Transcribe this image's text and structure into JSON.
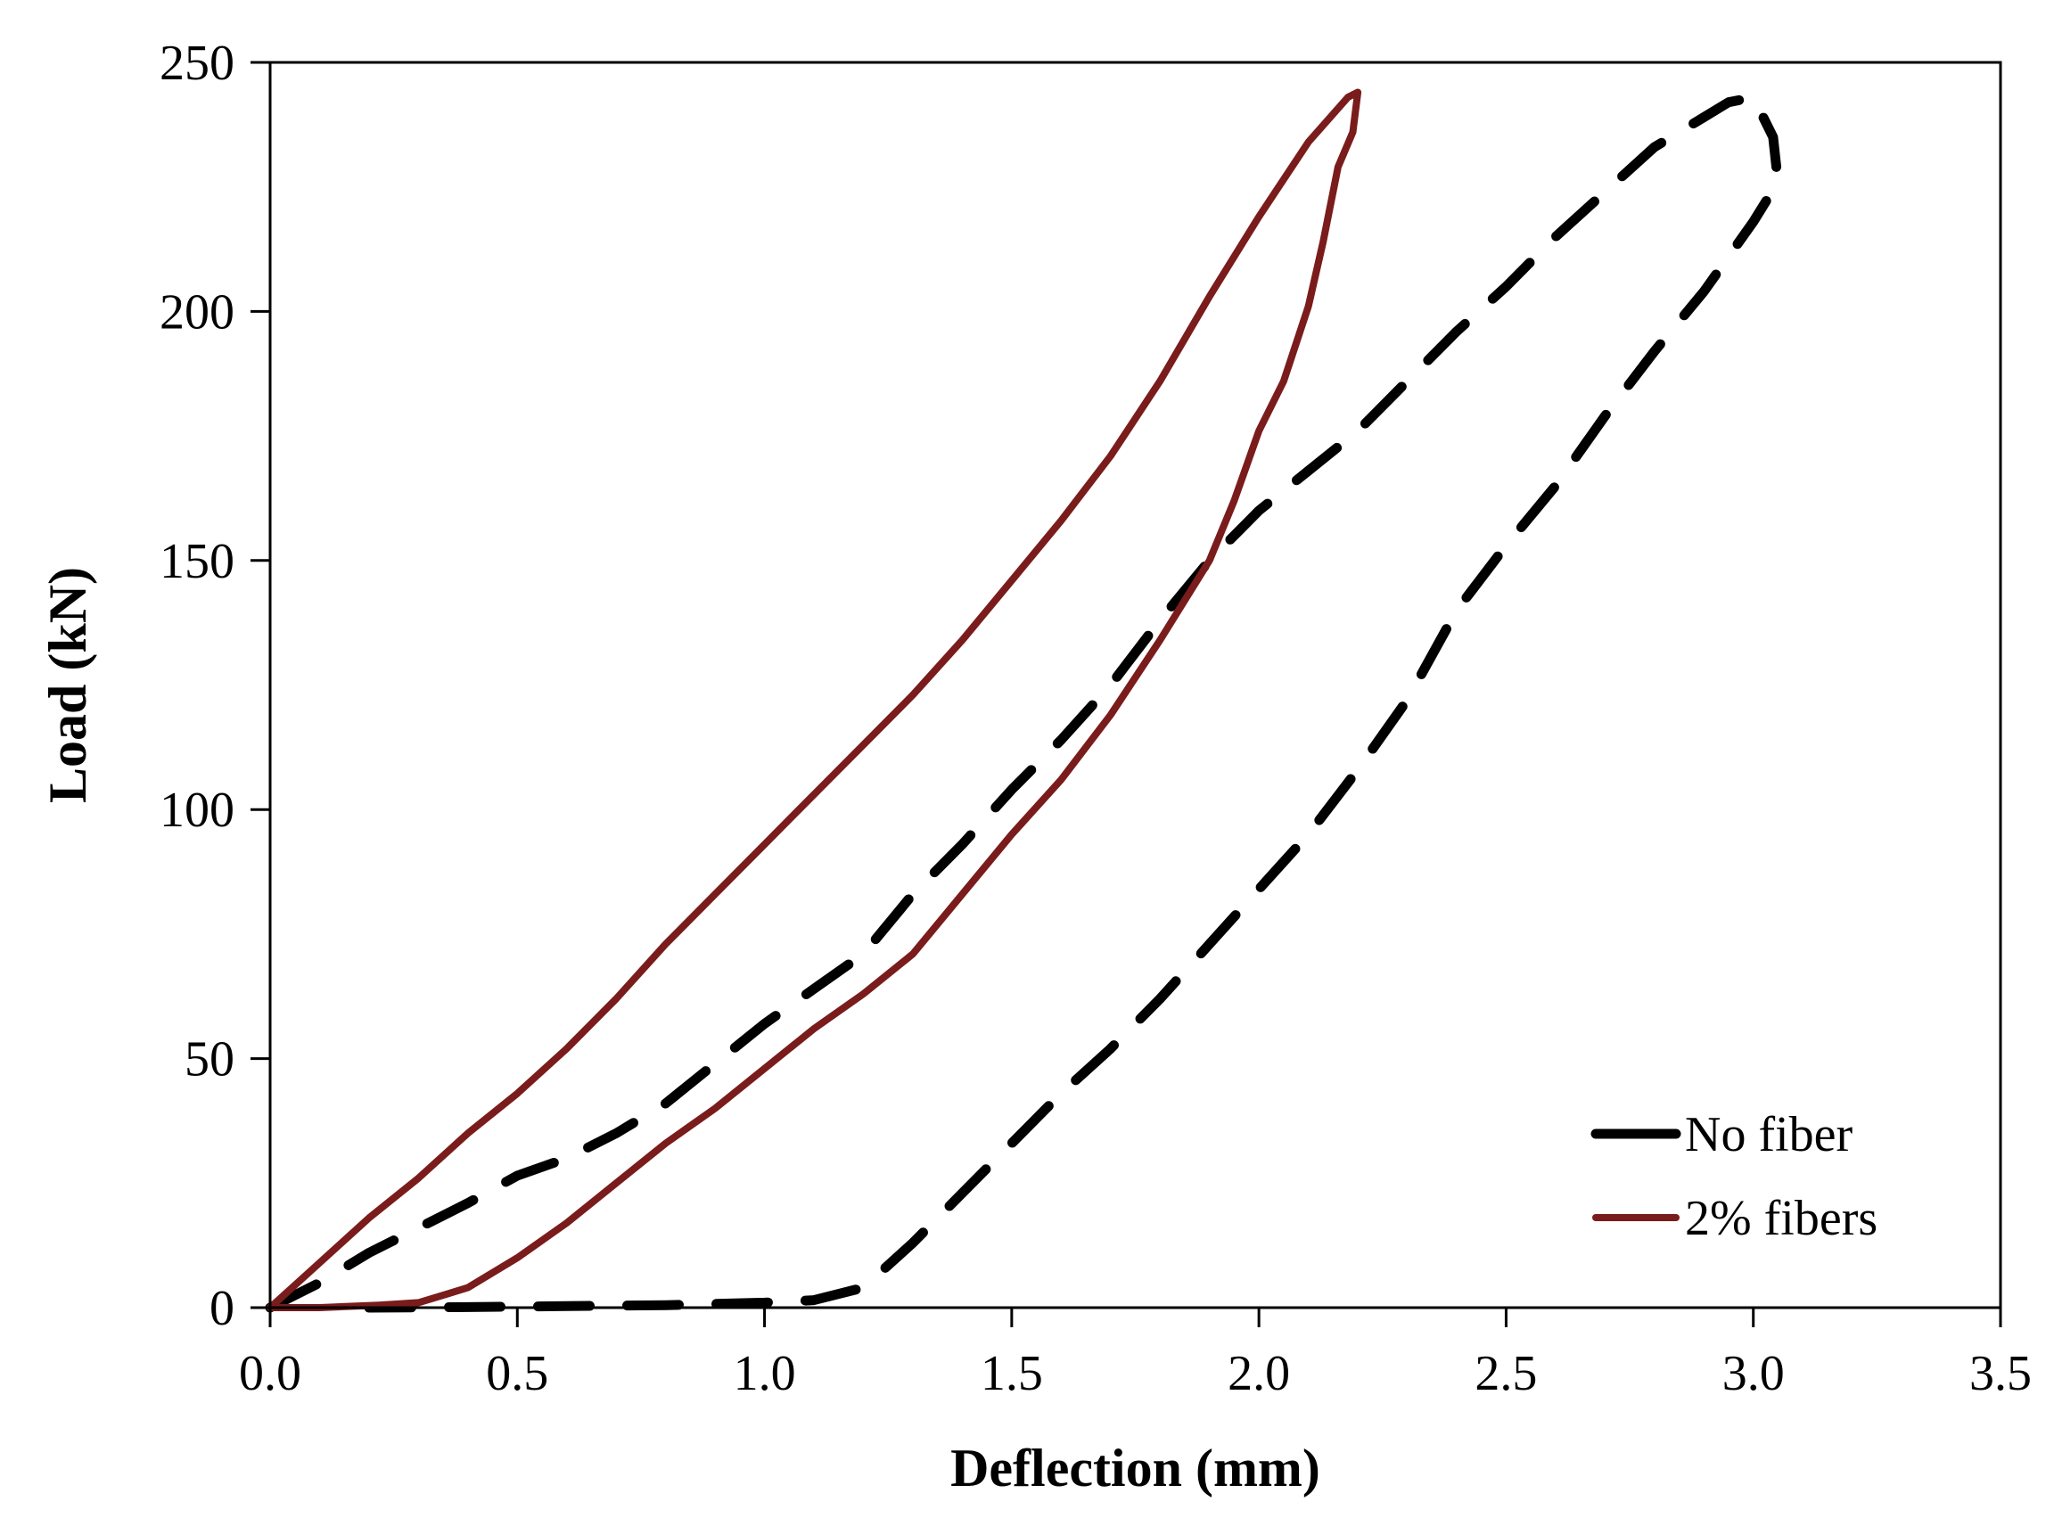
{
  "chart_data": {
    "type": "line",
    "title": "",
    "xlabel": "Deflection (mm)",
    "ylabel": "Load (kN)",
    "xlim": [
      0,
      3.5
    ],
    "ylim": [
      0,
      250
    ],
    "x_ticks": [
      0,
      0.5,
      1,
      1.5,
      2,
      2.5,
      3,
      3.5
    ],
    "x_tick_labels": [
      "0.0",
      "0.5",
      "1.0",
      "1.5",
      "2.0",
      "2.5",
      "3.0",
      "3.5"
    ],
    "y_ticks": [
      0,
      50,
      100,
      150,
      200,
      250
    ],
    "y_tick_labels": [
      "0",
      "50",
      "100",
      "150",
      "200",
      "250"
    ],
    "grid": false,
    "legend_position": "bottom-right",
    "series": [
      {
        "name": "No fiber",
        "color": "#000000",
        "style": "dashed",
        "points": [
          [
            0.0,
            0
          ],
          [
            0.1,
            5
          ],
          [
            0.2,
            11
          ],
          [
            0.3,
            16
          ],
          [
            0.4,
            21
          ],
          [
            0.5,
            26.5
          ],
          [
            0.6,
            30
          ],
          [
            0.7,
            35
          ],
          [
            0.8,
            41
          ],
          [
            0.9,
            49
          ],
          [
            1.0,
            57
          ],
          [
            1.1,
            64
          ],
          [
            1.2,
            71
          ],
          [
            1.3,
            83
          ],
          [
            1.4,
            93
          ],
          [
            1.5,
            104
          ],
          [
            1.6,
            114
          ],
          [
            1.7,
            125
          ],
          [
            1.8,
            138
          ],
          [
            1.9,
            150
          ],
          [
            2.0,
            160
          ],
          [
            2.1,
            168
          ],
          [
            2.2,
            176
          ],
          [
            2.3,
            186
          ],
          [
            2.4,
            196
          ],
          [
            2.5,
            205
          ],
          [
            2.6,
            215
          ],
          [
            2.7,
            224
          ],
          [
            2.8,
            233
          ],
          [
            2.9,
            239
          ],
          [
            2.95,
            242
          ],
          [
            3.0,
            243
          ],
          [
            3.04,
            235
          ],
          [
            3.05,
            226
          ],
          [
            3.0,
            218
          ],
          [
            2.9,
            204
          ],
          [
            2.8,
            192
          ],
          [
            2.7,
            179
          ],
          [
            2.6,
            165
          ],
          [
            2.5,
            153
          ],
          [
            2.4,
            140
          ],
          [
            2.3,
            122
          ],
          [
            2.2,
            108
          ],
          [
            2.1,
            95
          ],
          [
            2.0,
            84
          ],
          [
            1.9,
            73
          ],
          [
            1.8,
            62
          ],
          [
            1.7,
            52
          ],
          [
            1.6,
            43
          ],
          [
            1.5,
            33
          ],
          [
            1.4,
            23
          ],
          [
            1.3,
            13
          ],
          [
            1.2,
            4
          ],
          [
            1.1,
            1.5
          ],
          [
            1.0,
            1
          ],
          [
            0.8,
            0.5
          ],
          [
            0.6,
            0.3
          ],
          [
            0.4,
            0.1
          ],
          [
            0.2,
            0
          ]
        ]
      },
      {
        "name": "2% fibers",
        "color": "#7a1c1c",
        "style": "solid",
        "points": [
          [
            0.0,
            0
          ],
          [
            0.1,
            9
          ],
          [
            0.2,
            18
          ],
          [
            0.3,
            26
          ],
          [
            0.4,
            35
          ],
          [
            0.5,
            43
          ],
          [
            0.6,
            52
          ],
          [
            0.7,
            62
          ],
          [
            0.8,
            73
          ],
          [
            0.9,
            83
          ],
          [
            1.0,
            93
          ],
          [
            1.1,
            103
          ],
          [
            1.2,
            113
          ],
          [
            1.3,
            123
          ],
          [
            1.4,
            134
          ],
          [
            1.5,
            146
          ],
          [
            1.6,
            158
          ],
          [
            1.7,
            171
          ],
          [
            1.8,
            186
          ],
          [
            1.9,
            203
          ],
          [
            2.0,
            219
          ],
          [
            2.1,
            234
          ],
          [
            2.18,
            243
          ],
          [
            2.2,
            244
          ],
          [
            2.19,
            236
          ],
          [
            2.16,
            229
          ],
          [
            2.13,
            214
          ],
          [
            2.1,
            201
          ],
          [
            2.05,
            186
          ],
          [
            2.0,
            176
          ],
          [
            1.95,
            162
          ],
          [
            1.9,
            150
          ],
          [
            1.8,
            134
          ],
          [
            1.7,
            119
          ],
          [
            1.6,
            106
          ],
          [
            1.5,
            95
          ],
          [
            1.4,
            83
          ],
          [
            1.3,
            71
          ],
          [
            1.2,
            63
          ],
          [
            1.1,
            56
          ],
          [
            1.0,
            48
          ],
          [
            0.9,
            40
          ],
          [
            0.8,
            33
          ],
          [
            0.7,
            25
          ],
          [
            0.6,
            17
          ],
          [
            0.5,
            10
          ],
          [
            0.4,
            4
          ],
          [
            0.3,
            1
          ],
          [
            0.22,
            0.5
          ],
          [
            0.1,
            0
          ],
          [
            0.0,
            0
          ]
        ]
      }
    ]
  }
}
